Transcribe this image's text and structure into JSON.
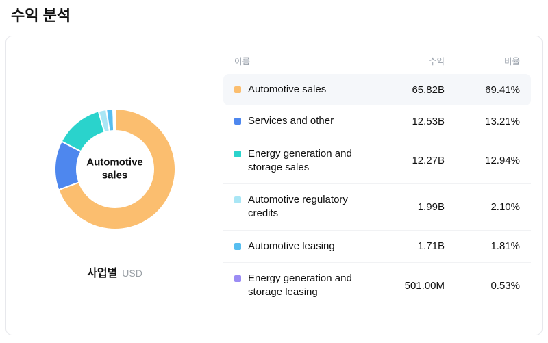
{
  "page": {
    "title": "수익 분석"
  },
  "chart": {
    "center_label": "Automotive sales",
    "caption_bold": "사업별",
    "caption_unit": "USD"
  },
  "table": {
    "headers": {
      "name": "이름",
      "revenue": "수익",
      "ratio": "비율"
    },
    "rows": [
      {
        "name": "Automotive sales",
        "revenue": "65.82B",
        "ratio": "69.41%",
        "color": "#fbbe6f",
        "highlighted": true
      },
      {
        "name": "Services and other",
        "revenue": "12.53B",
        "ratio": "13.21%",
        "color": "#4e87ee",
        "highlighted": false
      },
      {
        "name": "Energy generation and storage sales",
        "revenue": "12.27B",
        "ratio": "12.94%",
        "color": "#2ad3cc",
        "highlighted": false
      },
      {
        "name": "Automotive regulatory credits",
        "revenue": "1.99B",
        "ratio": "2.10%",
        "color": "#a9e6f5",
        "highlighted": false
      },
      {
        "name": "Automotive leasing",
        "revenue": "1.71B",
        "ratio": "1.81%",
        "color": "#57bef0",
        "highlighted": false
      },
      {
        "name": "Energy generation and storage leasing",
        "revenue": "501.00M",
        "ratio": "0.53%",
        "color": "#9b8cf4",
        "highlighted": false
      }
    ]
  },
  "chart_data": {
    "type": "pie",
    "subtype": "donut",
    "caption": "사업별",
    "unit": "USD",
    "center_label": "Automotive sales",
    "categories": [
      "Automotive sales",
      "Services and other",
      "Energy generation and storage sales",
      "Automotive regulatory credits",
      "Automotive leasing",
      "Energy generation and storage leasing"
    ],
    "values": [
      69.41,
      13.21,
      12.94,
      2.1,
      1.81,
      0.53
    ],
    "revenues": [
      "65.82B",
      "12.53B",
      "12.27B",
      "1.99B",
      "1.71B",
      "501.00M"
    ],
    "colors": [
      "#fbbe6f",
      "#4e87ee",
      "#2ad3cc",
      "#a9e6f5",
      "#57bef0",
      "#9b8cf4"
    ],
    "legend_position": "table-right",
    "start_angle_deg": 0,
    "direction": "clockwise"
  }
}
